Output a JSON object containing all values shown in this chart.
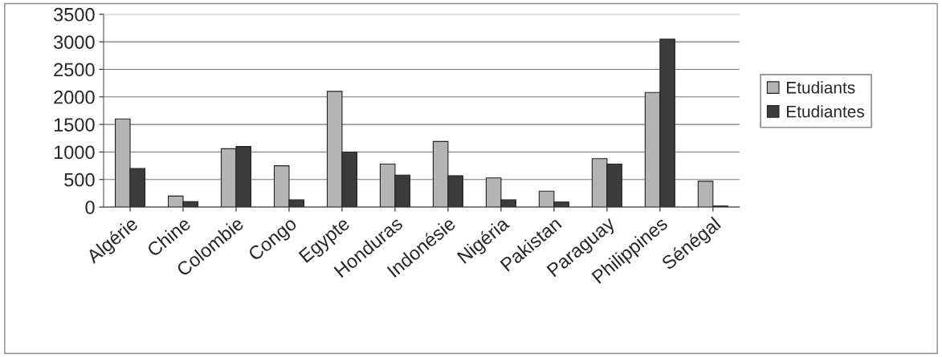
{
  "chart_data": {
    "type": "bar",
    "categories": [
      "Algérie",
      "Chine",
      "Colombie",
      "Congo",
      "Egypte",
      "Honduras",
      "Indonésie",
      "Nigéria",
      "Pakistan",
      "Paraguay",
      "Philippines",
      "Sénégal"
    ],
    "series": [
      {
        "name": "Etudiants",
        "color": "#b4b4b4",
        "values": [
          1600,
          200,
          1060,
          750,
          2100,
          780,
          1190,
          530,
          290,
          880,
          2080,
          470
        ]
      },
      {
        "name": "Etudiantes",
        "color": "#3c3c3c",
        "values": [
          700,
          100,
          1100,
          130,
          1000,
          580,
          570,
          130,
          90,
          780,
          3050,
          20
        ]
      }
    ],
    "ylim": [
      0,
      3500
    ],
    "yticks": [
      0,
      500,
      1000,
      1500,
      2000,
      2500,
      3000,
      3500
    ],
    "grid": "y",
    "legend": "right"
  }
}
